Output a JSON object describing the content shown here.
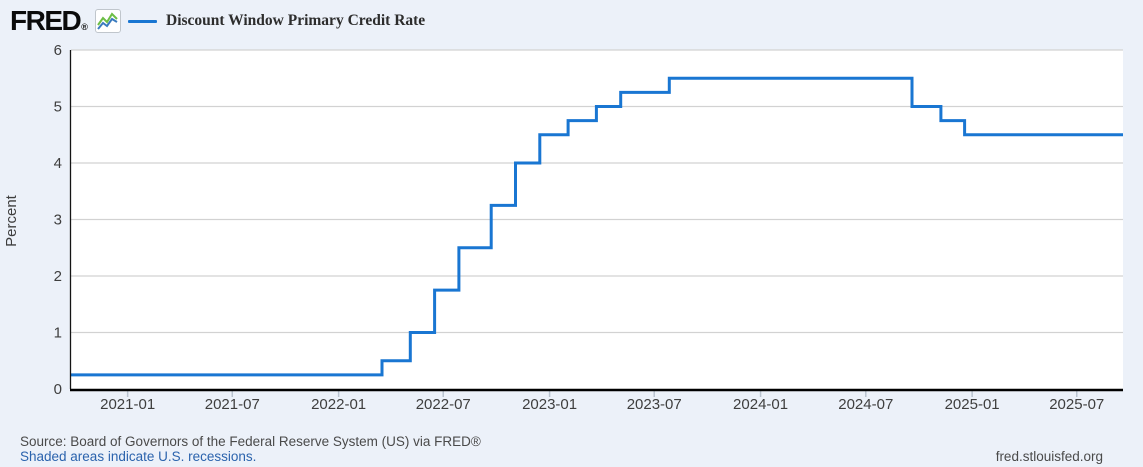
{
  "header": {
    "logo_text": "FRED",
    "logo_registered": "®",
    "legend": {
      "label": "Discount Window Primary Credit Rate",
      "line_color": "#1976d2"
    }
  },
  "chart_data": {
    "type": "line",
    "step": true,
    "title": "Discount Window Primary Credit Rate",
    "ylabel": "Percent",
    "ylim": [
      0,
      6
    ],
    "yticks": [
      0,
      1,
      2,
      3,
      4,
      5,
      6
    ],
    "x_start": "2020-09-25",
    "x_end": "2025-09-19",
    "xticks": [
      "2021-01",
      "2021-07",
      "2022-01",
      "2022-07",
      "2023-01",
      "2023-07",
      "2024-01",
      "2024-07",
      "2025-01",
      "2025-07"
    ],
    "grid": true,
    "legend_position": "top-left",
    "line_color": "#1976d2",
    "series": [
      {
        "name": "Discount Window Primary Credit Rate",
        "points": [
          {
            "date": "2020-09-25",
            "value": 0.25
          },
          {
            "date": "2022-03-17",
            "value": 0.5
          },
          {
            "date": "2022-05-05",
            "value": 1.0
          },
          {
            "date": "2022-06-16",
            "value": 1.75
          },
          {
            "date": "2022-07-28",
            "value": 2.5
          },
          {
            "date": "2022-09-22",
            "value": 3.25
          },
          {
            "date": "2022-11-03",
            "value": 4.0
          },
          {
            "date": "2022-12-15",
            "value": 4.5
          },
          {
            "date": "2023-02-02",
            "value": 4.75
          },
          {
            "date": "2023-03-23",
            "value": 5.0
          },
          {
            "date": "2023-05-04",
            "value": 5.25
          },
          {
            "date": "2023-07-27",
            "value": 5.5
          },
          {
            "date": "2024-09-19",
            "value": 5.0
          },
          {
            "date": "2024-11-08",
            "value": 4.75
          },
          {
            "date": "2024-12-19",
            "value": 4.5
          }
        ]
      }
    ]
  },
  "footer": {
    "source_line": "Source: Board of Governors of the Federal Reserve System (US) via FRED®",
    "recession_note": "Shaded areas indicate U.S. recessions.",
    "site_url": "fred.stlouisfed.org"
  },
  "colors": {
    "page_background": "#ecf1f9",
    "plot_background": "#ffffff",
    "gridline": "#d2d2d2",
    "axis": "#000000",
    "tick": "#b9c3cf",
    "tick_label": "#3e3e3e",
    "footer_text": "#4a4a4a",
    "link": "#2b63ad",
    "icon_green": "#6cbe45",
    "icon_blue": "#3a7bbf"
  }
}
